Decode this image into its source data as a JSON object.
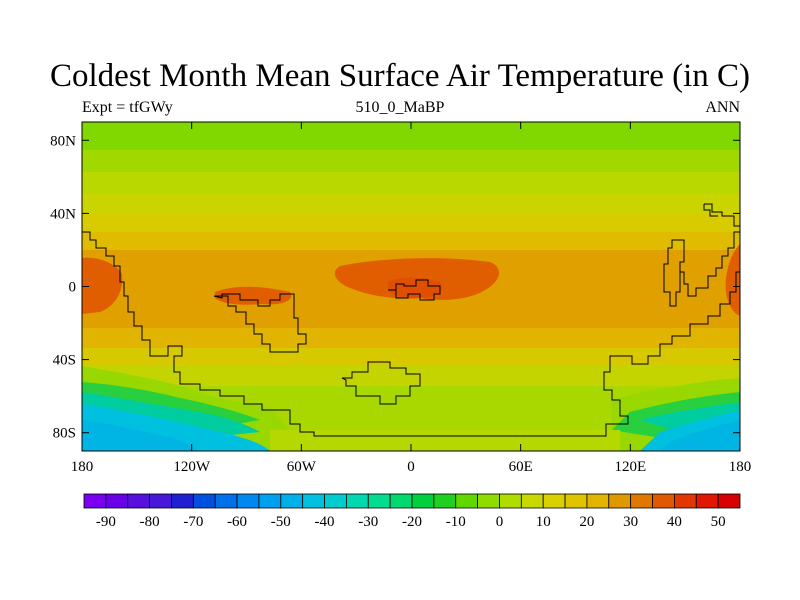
{
  "title": "Coldest Month Mean Surface Air Temperature (in C)",
  "subtitle_left": "Expt = tfGWy",
  "subtitle_center": "510_0_MaBP",
  "subtitle_right": "ANN",
  "chart_data": {
    "type": "heatmap",
    "projection": "cylindrical-equidistant",
    "lon_range": [
      -180,
      180
    ],
    "lat_range": [
      -90,
      90
    ],
    "x_ticks": [
      {
        "value": -180,
        "label": "180"
      },
      {
        "value": -120,
        "label": "120W"
      },
      {
        "value": -60,
        "label": "60W"
      },
      {
        "value": 0,
        "label": "0"
      },
      {
        "value": 60,
        "label": "60E"
      },
      {
        "value": 120,
        "label": "120E"
      },
      {
        "value": 180,
        "label": "180"
      }
    ],
    "y_ticks": [
      {
        "value": 80,
        "label": "80N"
      },
      {
        "value": 40,
        "label": "40N"
      },
      {
        "value": 0,
        "label": "0"
      },
      {
        "value": -40,
        "label": "40S"
      },
      {
        "value": -80,
        "label": "80S"
      }
    ],
    "colorbar": {
      "labels": [
        "-90",
        "-80",
        "-70",
        "-60",
        "-50",
        "-40",
        "-30",
        "-20",
        "-10",
        "0",
        "10",
        "20",
        "30",
        "40",
        "50"
      ],
      "colors": [
        "#7c00f0",
        "#6a00e8",
        "#5810de",
        "#4818d8",
        "#2020d0",
        "#0050e0",
        "#0070e8",
        "#0088f0",
        "#00a0f0",
        "#00b0e8",
        "#00c0e0",
        "#00ccd0",
        "#00d8b0",
        "#00dc90",
        "#00d870",
        "#00d040",
        "#20d020",
        "#60d800",
        "#90dc00",
        "#b0dc00",
        "#c8d800",
        "#d8d000",
        "#e0c400",
        "#e0b400",
        "#e09800",
        "#e07800",
        "#e05800",
        "#e03800",
        "#e01800",
        "#d80000"
      ]
    }
  }
}
